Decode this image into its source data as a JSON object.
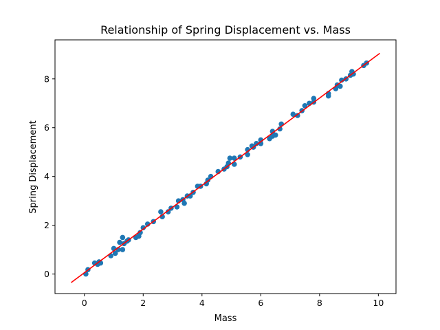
{
  "chart_data": {
    "type": "scatter",
    "title": "Relationship of Spring Displacement vs. Mass",
    "xlabel": "Mass",
    "ylabel": "Spring Displacement",
    "xlim": [
      -1.0,
      10.6
    ],
    "ylim": [
      -0.8,
      9.6
    ],
    "xticks": [
      0,
      2,
      4,
      6,
      8,
      10
    ],
    "yticks": [
      0,
      2,
      4,
      6,
      8
    ],
    "grid": false,
    "point_color": "#1f77b4",
    "line_color": "#ff0000",
    "series": [
      {
        "type": "scatter",
        "points": [
          [
            0.05,
            0.0
          ],
          [
            0.12,
            0.18
          ],
          [
            0.35,
            0.45
          ],
          [
            0.45,
            0.4
          ],
          [
            0.5,
            0.5
          ],
          [
            0.55,
            0.45
          ],
          [
            0.9,
            0.75
          ],
          [
            1.0,
            1.05
          ],
          [
            1.05,
            0.85
          ],
          [
            1.15,
            1.0
          ],
          [
            1.2,
            1.3
          ],
          [
            1.3,
            1.0
          ],
          [
            1.3,
            1.5
          ],
          [
            1.35,
            1.25
          ],
          [
            1.45,
            1.35
          ],
          [
            1.5,
            1.4
          ],
          [
            1.75,
            1.5
          ],
          [
            1.85,
            1.55
          ],
          [
            1.9,
            1.7
          ],
          [
            2.0,
            1.9
          ],
          [
            2.15,
            2.05
          ],
          [
            2.35,
            2.15
          ],
          [
            2.6,
            2.55
          ],
          [
            2.65,
            2.35
          ],
          [
            2.85,
            2.55
          ],
          [
            2.95,
            2.7
          ],
          [
            3.15,
            2.75
          ],
          [
            3.2,
            3.0
          ],
          [
            3.35,
            3.05
          ],
          [
            3.4,
            2.9
          ],
          [
            3.5,
            3.2
          ],
          [
            3.6,
            3.2
          ],
          [
            3.7,
            3.35
          ],
          [
            3.85,
            3.6
          ],
          [
            3.95,
            3.6
          ],
          [
            4.15,
            3.7
          ],
          [
            4.2,
            3.85
          ],
          [
            4.3,
            4.0
          ],
          [
            4.55,
            4.2
          ],
          [
            4.75,
            4.3
          ],
          [
            4.85,
            4.4
          ],
          [
            4.9,
            4.55
          ],
          [
            4.95,
            4.75
          ],
          [
            5.1,
            4.5
          ],
          [
            5.1,
            4.75
          ],
          [
            5.3,
            4.8
          ],
          [
            5.55,
            4.9
          ],
          [
            5.55,
            5.1
          ],
          [
            5.7,
            5.25
          ],
          [
            5.75,
            5.2
          ],
          [
            5.85,
            5.35
          ],
          [
            6.0,
            5.35
          ],
          [
            6.0,
            5.5
          ],
          [
            6.3,
            5.55
          ],
          [
            6.4,
            5.65
          ],
          [
            6.4,
            5.85
          ],
          [
            6.5,
            5.7
          ],
          [
            6.65,
            5.95
          ],
          [
            6.7,
            6.15
          ],
          [
            7.1,
            6.55
          ],
          [
            7.25,
            6.5
          ],
          [
            7.4,
            6.7
          ],
          [
            7.5,
            6.9
          ],
          [
            7.65,
            7.0
          ],
          [
            7.8,
            7.05
          ],
          [
            7.8,
            7.2
          ],
          [
            8.3,
            7.3
          ],
          [
            8.3,
            7.4
          ],
          [
            8.55,
            7.6
          ],
          [
            8.6,
            7.75
          ],
          [
            8.7,
            7.7
          ],
          [
            8.75,
            7.95
          ],
          [
            8.9,
            8.0
          ],
          [
            9.05,
            8.15
          ],
          [
            9.1,
            8.3
          ],
          [
            9.15,
            8.2
          ],
          [
            9.5,
            8.55
          ],
          [
            9.6,
            8.65
          ]
        ]
      },
      {
        "type": "line",
        "points": [
          [
            -0.45,
            -0.35
          ],
          [
            10.05,
            9.05
          ]
        ]
      }
    ]
  }
}
